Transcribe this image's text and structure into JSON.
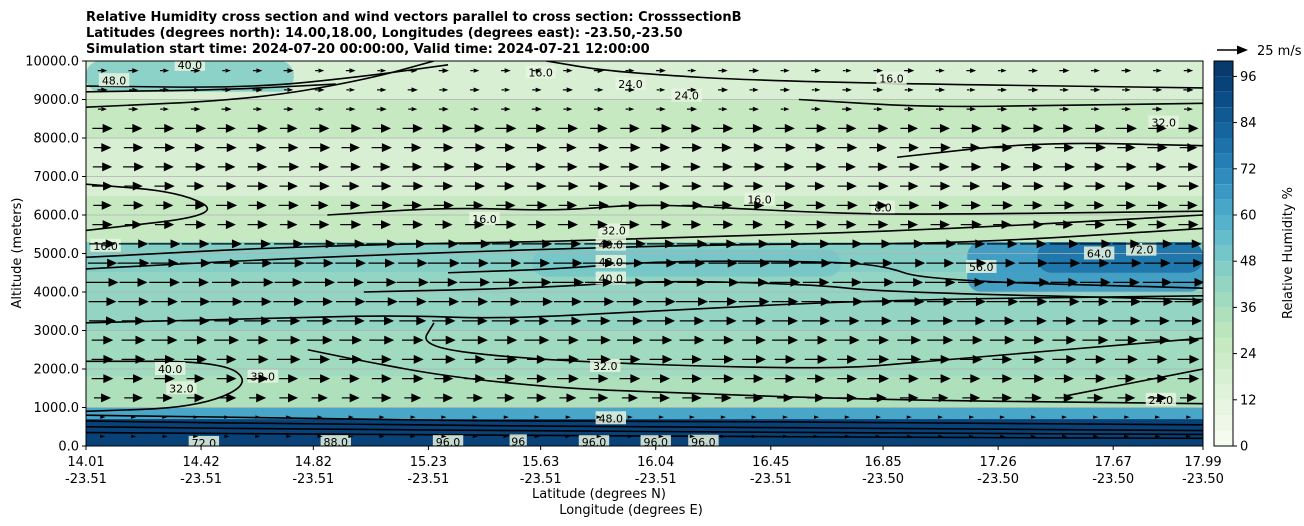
{
  "chart_data": {
    "type": "contour",
    "title_lines": [
      "Relative Humidity cross section and wind vectors parallel to cross section: CrosssectionB",
      "Latitudes (degrees north): 14.00,18.00, Longitudes (degrees east): -23.50,-23.50",
      "Simulation start time: 2024-07-20 00:00:00, Valid time: 2024-07-21 12:00:00"
    ],
    "ylabel": "Altitude (meters)",
    "xlabel_lat": "Latitude (degrees N)",
    "xlabel_lon": "Longitude (degrees E)",
    "ylim": [
      0,
      10000
    ],
    "xlim": [
      14.01,
      17.99
    ],
    "y_ticks": [
      {
        "v": 0,
        "label": "0.0"
      },
      {
        "v": 1000,
        "label": "1000.0"
      },
      {
        "v": 2000,
        "label": "2000.0"
      },
      {
        "v": 3000,
        "label": "3000.0"
      },
      {
        "v": 4000,
        "label": "4000.0"
      },
      {
        "v": 5000,
        "label": "5000.0"
      },
      {
        "v": 6000,
        "label": "6000.0"
      },
      {
        "v": 7000,
        "label": "7000.0"
      },
      {
        "v": 8000,
        "label": "8000.0"
      },
      {
        "v": 9000,
        "label": "9000.0"
      },
      {
        "v": 10000,
        "label": "10000.0"
      }
    ],
    "x_ticks": [
      {
        "lat": "14.01",
        "lon": "-23.51",
        "v": 14.01
      },
      {
        "lat": "14.42",
        "lon": "-23.51",
        "v": 14.42
      },
      {
        "lat": "14.82",
        "lon": "-23.51",
        "v": 14.82
      },
      {
        "lat": "15.23",
        "lon": "-23.51",
        "v": 15.23
      },
      {
        "lat": "15.63",
        "lon": "-23.51",
        "v": 15.63
      },
      {
        "lat": "16.04",
        "lon": "-23.51",
        "v": 16.04
      },
      {
        "lat": "16.45",
        "lon": "-23.51",
        "v": 16.45
      },
      {
        "lat": "16.85",
        "lon": "-23.50",
        "v": 16.85
      },
      {
        "lat": "17.26",
        "lon": "-23.50",
        "v": 17.26
      },
      {
        "lat": "17.67",
        "lon": "-23.50",
        "v": 17.67
      },
      {
        "lat": "17.99",
        "lon": "-23.50",
        "v": 17.99
      }
    ],
    "grid": "horizontal",
    "colorbar": {
      "label": "Relative Humidity %",
      "ticks": [
        "0",
        "12",
        "24",
        "36",
        "48",
        "60",
        "72",
        "84",
        "96"
      ],
      "min": 0,
      "max": 100,
      "step": 4,
      "colors": [
        "#f5fbef",
        "#eef8e8",
        "#e7f5e1",
        "#dff2da",
        "#d8efd3",
        "#cfecca",
        "#c6e9c2",
        "#bbe5bd",
        "#afe0bc",
        "#a1dbbf",
        "#93d5c2",
        "#84cec6",
        "#75c6c9",
        "#65bccb",
        "#56b1cb",
        "#48a6c8",
        "#3b99c3",
        "#308cbc",
        "#267fb4",
        "#1d72aa",
        "#16659f",
        "#105993",
        "#0b4d86",
        "#084279",
        "#083a6e"
      ]
    },
    "wind_key": {
      "label": "25 m/s",
      "speed": 25
    },
    "rh_bands": [
      {
        "ymin": 0,
        "ymax": 700,
        "rh": 92
      },
      {
        "ymin": 700,
        "ymax": 1000,
        "rh": 60
      },
      {
        "ymin": 1000,
        "ymax": 1800,
        "rh": 32
      },
      {
        "ymin": 1800,
        "ymax": 3000,
        "rh": 36
      },
      {
        "ymin": 3000,
        "ymax": 4500,
        "rh": 40
      },
      {
        "ymin": 4500,
        "ymax": 5300,
        "rh": 44
      },
      {
        "ymin": 5300,
        "ymax": 6500,
        "rh": 24
      },
      {
        "ymin": 6500,
        "ymax": 8000,
        "rh": 16
      },
      {
        "ymin": 8000,
        "ymax": 9000,
        "rh": 24
      },
      {
        "ymin": 9000,
        "ymax": 10000,
        "rh": 16
      }
    ],
    "rh_patches": [
      {
        "x0": 17.15,
        "x1": 17.99,
        "y0": 4000,
        "y1": 5300,
        "rh": 64
      },
      {
        "x0": 17.4,
        "x1": 17.99,
        "y0": 4500,
        "y1": 5300,
        "rh": 76
      },
      {
        "x0": 14.01,
        "x1": 14.75,
        "y0": 9200,
        "y1": 10000,
        "rh": 44
      },
      {
        "x0": 15.6,
        "x1": 16.7,
        "y0": 4400,
        "y1": 5100,
        "rh": 48
      }
    ],
    "contours": [
      {
        "pts": [
          [
            14.01,
            8800
          ],
          [
            14.6,
            9000
          ],
          [
            15.0,
            9500
          ],
          [
            15.25,
            10000
          ]
        ]
      },
      {
        "pts": [
          [
            14.01,
            9350
          ],
          [
            14.6,
            9300
          ],
          [
            15.0,
            9600
          ],
          [
            15.3,
            9900
          ]
        ]
      },
      {
        "pts": [
          [
            14.01,
            9200
          ],
          [
            14.5,
            9250
          ],
          [
            14.9,
            9400
          ]
        ]
      },
      {
        "pts": [
          [
            15.65,
            10000
          ],
          [
            15.9,
            9700
          ],
          [
            16.5,
            9450
          ],
          [
            17.99,
            9300
          ]
        ]
      },
      {
        "pts": [
          [
            16.55,
            9000
          ],
          [
            17.0,
            8800
          ],
          [
            17.5,
            8850
          ],
          [
            17.99,
            8900
          ]
        ]
      },
      {
        "pts": [
          [
            16.9,
            7500
          ],
          [
            17.4,
            7900
          ],
          [
            17.99,
            7800
          ]
        ]
      },
      {
        "pts": [
          [
            14.01,
            6800
          ],
          [
            14.35,
            6600
          ],
          [
            14.5,
            6000
          ],
          [
            14.01,
            5600
          ]
        ]
      },
      {
        "pts": [
          [
            14.87,
            6000
          ],
          [
            15.3,
            6200
          ],
          [
            15.7,
            6100
          ],
          [
            16.0,
            6300
          ],
          [
            16.5,
            6100
          ],
          [
            16.9,
            6000
          ],
          [
            17.99,
            6100
          ]
        ]
      },
      {
        "pts": [
          [
            14.01,
            4900
          ],
          [
            14.8,
            5200
          ],
          [
            15.6,
            5300
          ],
          [
            16.04,
            5400
          ],
          [
            17.0,
            5600
          ],
          [
            17.99,
            6000
          ]
        ]
      },
      {
        "pts": [
          [
            14.01,
            4600
          ],
          [
            14.8,
            4900
          ],
          [
            15.8,
            5150
          ],
          [
            16.45,
            5250
          ],
          [
            17.1,
            5250
          ],
          [
            17.99,
            5650
          ]
        ]
      },
      {
        "pts": [
          [
            15.3,
            4500
          ],
          [
            15.7,
            4600
          ],
          [
            16.04,
            4800
          ],
          [
            16.6,
            4800
          ],
          [
            16.85,
            4700
          ],
          [
            17.0,
            4300
          ],
          [
            17.99,
            4100
          ]
        ]
      },
      {
        "pts": [
          [
            15.0,
            4000
          ],
          [
            15.6,
            4100
          ],
          [
            16.04,
            4300
          ],
          [
            16.6,
            4200
          ],
          [
            16.85,
            4000
          ],
          [
            17.99,
            3800
          ]
        ]
      },
      {
        "pts": [
          [
            14.01,
            3200
          ],
          [
            14.6,
            3300
          ],
          [
            15.1,
            3400
          ],
          [
            15.5,
            3300
          ],
          [
            16.0,
            3500
          ],
          [
            16.85,
            3800
          ],
          [
            17.99,
            3900
          ]
        ]
      },
      {
        "pts": [
          [
            15.25,
            3200
          ],
          [
            15.2,
            2600
          ],
          [
            15.5,
            2300
          ],
          [
            16.04,
            2100
          ],
          [
            16.7,
            2000
          ],
          [
            17.0,
            2200
          ],
          [
            17.99,
            2800
          ]
        ]
      },
      {
        "pts": [
          [
            14.01,
            2200
          ],
          [
            14.5,
            2200
          ],
          [
            14.6,
            1600
          ],
          [
            14.4,
            1000
          ],
          [
            14.01,
            900
          ]
        ]
      },
      {
        "pts": [
          [
            14.8,
            2500
          ],
          [
            15.0,
            2200
          ],
          [
            15.3,
            1800
          ],
          [
            15.7,
            1500
          ],
          [
            16.04,
            1400
          ],
          [
            16.8,
            1200
          ],
          [
            17.99,
            1100
          ]
        ]
      },
      {
        "pts": [
          [
            17.5,
            1300
          ],
          [
            17.99,
            2000
          ]
        ]
      },
      {
        "pts": [
          [
            14.01,
            800
          ],
          [
            15.0,
            700
          ],
          [
            15.4,
            650
          ],
          [
            16.04,
            650
          ],
          [
            17.0,
            600
          ],
          [
            17.99,
            550
          ]
        ]
      },
      {
        "pts": [
          [
            14.01,
            650
          ],
          [
            15.0,
            550
          ],
          [
            16.04,
            500
          ],
          [
            17.0,
            450
          ],
          [
            17.99,
            400
          ]
        ]
      },
      {
        "pts": [
          [
            14.01,
            500
          ],
          [
            15.0,
            420
          ],
          [
            16.04,
            380
          ],
          [
            17.0,
            330
          ],
          [
            17.99,
            300
          ]
        ]
      },
      {
        "pts": [
          [
            14.01,
            350
          ],
          [
            15.0,
            300
          ],
          [
            16.04,
            260
          ],
          [
            17.0,
            220
          ],
          [
            17.99,
            200
          ]
        ]
      }
    ],
    "contour_labels": [
      {
        "text": "16.0",
        "x": 15.63,
        "y": 9700
      },
      {
        "text": "24.0",
        "x": 15.95,
        "y": 9400
      },
      {
        "text": "24.0",
        "x": 16.15,
        "y": 9100
      },
      {
        "text": "16.0",
        "x": 16.88,
        "y": 9550
      },
      {
        "text": "32.0",
        "x": 17.85,
        "y": 8400
      },
      {
        "text": "48.0",
        "x": 14.11,
        "y": 9500
      },
      {
        "text": "40.0",
        "x": 14.38,
        "y": 9900
      },
      {
        "text": "16.0",
        "x": 15.43,
        "y": 5900
      },
      {
        "text": "16.0",
        "x": 16.41,
        "y": 6400
      },
      {
        "text": "8.0",
        "x": 16.85,
        "y": 6200
      },
      {
        "text": "32.0",
        "x": 15.89,
        "y": 5600
      },
      {
        "text": "48.0",
        "x": 15.88,
        "y": 5230
      },
      {
        "text": "48.0",
        "x": 15.88,
        "y": 4780
      },
      {
        "text": "40.0",
        "x": 15.88,
        "y": 4350
      },
      {
        "text": "32.0",
        "x": 15.86,
        "y": 2080
      },
      {
        "text": "64.0",
        "x": 17.62,
        "y": 5000
      },
      {
        "text": "72.0",
        "x": 17.77,
        "y": 5100
      },
      {
        "text": "56.0",
        "x": 17.2,
        "y": 4650
      },
      {
        "text": "16.0",
        "x": 14.08,
        "y": 5200
      },
      {
        "text": "40.0",
        "x": 14.31,
        "y": 2000
      },
      {
        "text": "32.0",
        "x": 14.35,
        "y": 1500
      },
      {
        "text": "32.0",
        "x": 14.64,
        "y": 1800
      },
      {
        "text": "24.0",
        "x": 17.84,
        "y": 1200
      },
      {
        "text": "48.0",
        "x": 15.88,
        "y": 720
      },
      {
        "text": "96.0",
        "x": 15.3,
        "y": 100
      },
      {
        "text": "96",
        "x": 15.55,
        "y": 120
      },
      {
        "text": "96.0",
        "x": 15.82,
        "y": 100
      },
      {
        "text": "96.0",
        "x": 16.04,
        "y": 100
      },
      {
        "text": "96.0",
        "x": 16.21,
        "y": 110
      },
      {
        "text": "72.0",
        "x": 14.43,
        "y": 80
      },
      {
        "text": "88.0",
        "x": 14.9,
        "y": 100
      }
    ],
    "wind_vector_unit_ms": "m/s"
  }
}
